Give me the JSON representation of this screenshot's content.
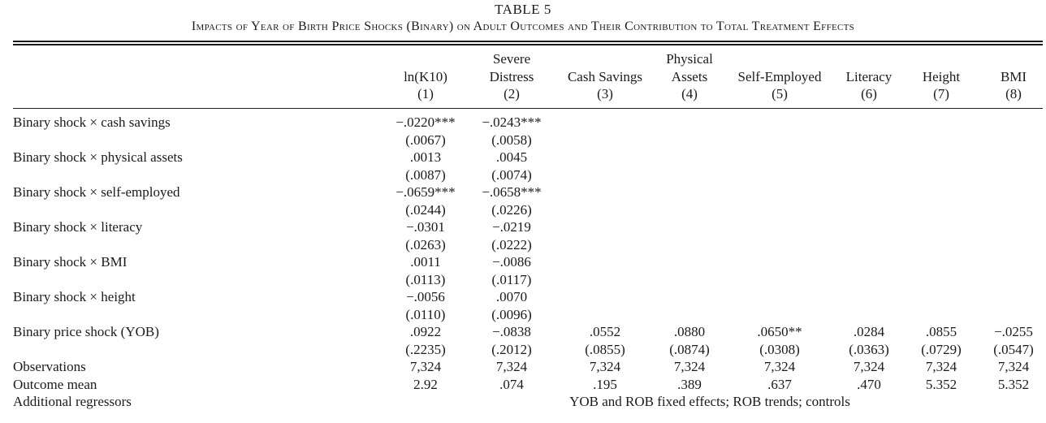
{
  "table": {
    "number": "TABLE 5",
    "title": "Impacts of Year of Birth Price Shocks (Binary) on Adult Outcomes and Their Contribution to Total Treatment Effects",
    "columns": [
      {
        "lines": [
          "",
          "ln(K10)",
          "(1)"
        ]
      },
      {
        "lines": [
          "Severe",
          "Distress",
          "(2)"
        ]
      },
      {
        "lines": [
          "",
          "Cash Savings",
          "(3)"
        ]
      },
      {
        "lines": [
          "Physical",
          "Assets",
          "(4)"
        ]
      },
      {
        "lines": [
          "",
          "Self-Employed",
          "(5)"
        ]
      },
      {
        "lines": [
          "",
          "Literacy",
          "(6)"
        ]
      },
      {
        "lines": [
          "",
          "Height",
          "(7)"
        ]
      },
      {
        "lines": [
          "",
          "BMI",
          "(8)"
        ]
      }
    ],
    "rows": [
      {
        "label": "Binary shock × cash savings",
        "coef": [
          "−.0220***",
          "−.0243***",
          "",
          "",
          "",
          "",
          "",
          ""
        ],
        "se": [
          "(.0067)",
          "(.0058)",
          "",
          "",
          "",
          "",
          "",
          ""
        ]
      },
      {
        "label": "Binary shock × physical assets",
        "coef": [
          ".0013",
          ".0045",
          "",
          "",
          "",
          "",
          "",
          ""
        ],
        "se": [
          "(.0087)",
          "(.0074)",
          "",
          "",
          "",
          "",
          "",
          ""
        ]
      },
      {
        "label": "Binary shock × self-employed",
        "coef": [
          "−.0659***",
          "−.0658***",
          "",
          "",
          "",
          "",
          "",
          ""
        ],
        "se": [
          "(.0244)",
          "(.0226)",
          "",
          "",
          "",
          "",
          "",
          ""
        ]
      },
      {
        "label": "Binary shock × literacy",
        "coef": [
          "−.0301",
          "−.0219",
          "",
          "",
          "",
          "",
          "",
          ""
        ],
        "se": [
          "(.0263)",
          "(.0222)",
          "",
          "",
          "",
          "",
          "",
          ""
        ]
      },
      {
        "label": "Binary shock × BMI",
        "coef": [
          ".0011",
          "−.0086",
          "",
          "",
          "",
          "",
          "",
          ""
        ],
        "se": [
          "(.0113)",
          "(.0117)",
          "",
          "",
          "",
          "",
          "",
          ""
        ]
      },
      {
        "label": "Binary shock × height",
        "coef": [
          "−.0056",
          ".0070",
          "",
          "",
          "",
          "",
          "",
          ""
        ],
        "se": [
          "(.0110)",
          "(.0096)",
          "",
          "",
          "",
          "",
          "",
          ""
        ]
      },
      {
        "label": "Binary price shock (YOB)",
        "coef": [
          ".0922",
          "−.0838",
          ".0552",
          ".0880",
          ".0650**",
          ".0284",
          ".0855",
          "−.0255"
        ],
        "se": [
          "(.2235)",
          "(.2012)",
          "(.0855)",
          "(.0874)",
          "(.0308)",
          "(.0363)",
          "(.0729)",
          "(.0547)"
        ]
      }
    ],
    "observations": {
      "label": "Observations",
      "values": [
        "7,324",
        "7,324",
        "7,324",
        "7,324",
        "7,324",
        "7,324",
        "7,324",
        "7,324"
      ]
    },
    "outcome_mean": {
      "label": "Outcome mean",
      "values": [
        "2.92",
        ".074",
        ".195",
        ".389",
        ".637",
        ".470",
        "5.352",
        "5.352"
      ]
    },
    "additional": {
      "label": "Additional regressors",
      "text": "YOB and ROB fixed effects; ROB trends; controls"
    }
  }
}
